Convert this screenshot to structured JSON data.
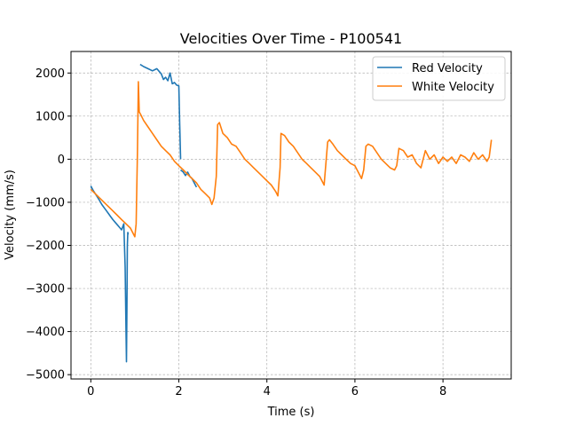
{
  "chart_data": {
    "type": "line",
    "title": "Velocities Over Time - P100541",
    "xlabel": "Time (s)",
    "ylabel": "Velocity (mm/s)",
    "xlim": [
      -0.45,
      9.55
    ],
    "ylim": [
      -5100,
      2500
    ],
    "xticks": [
      0,
      2,
      4,
      6,
      8
    ],
    "yticks": [
      -5000,
      -4000,
      -3000,
      -2000,
      -1000,
      0,
      1000,
      2000
    ],
    "grid": true,
    "legend_position": "top-right",
    "series": [
      {
        "name": "Red Velocity",
        "color": "#1f77b4",
        "segments": [
          {
            "x": [
              0.0,
              0.05,
              0.1,
              0.15,
              0.2,
              0.25,
              0.3,
              0.35,
              0.4,
              0.45,
              0.5,
              0.55,
              0.6,
              0.65,
              0.7,
              0.75,
              0.78,
              0.8,
              0.81,
              0.82,
              0.83,
              0.84,
              0.85
            ],
            "y": [
              -620,
              -720,
              -800,
              -880,
              -960,
              -1050,
              -1120,
              -1190,
              -1260,
              -1330,
              -1400,
              -1460,
              -1520,
              -1580,
              -1640,
              -1500,
              -2500,
              -4000,
              -4700,
              -3500,
              -2000,
              -1700,
              -1750
            ]
          },
          {
            "x": [
              1.12,
              1.2,
              1.3,
              1.4,
              1.5,
              1.6,
              1.65,
              1.7,
              1.75,
              1.8,
              1.85,
              1.9,
              1.95,
              2.0,
              2.02,
              2.04
            ],
            "y": [
              2200,
              2150,
              2100,
              2050,
              2100,
              1980,
              1850,
              1900,
              1820,
              2000,
              1750,
              1780,
              1720,
              1700,
              800,
              0
            ]
          },
          {
            "x": [
              2.04,
              2.1,
              2.15,
              2.2,
              2.25,
              2.3,
              2.35,
              2.4
            ],
            "y": [
              -250,
              -300,
              -380,
              -300,
              -400,
              -450,
              -550,
              -650
            ]
          }
        ]
      },
      {
        "name": "White Velocity",
        "color": "#ff7f0e",
        "segments": [
          {
            "x": [
              0.0,
              0.1,
              0.2,
              0.3,
              0.4,
              0.5,
              0.6,
              0.7,
              0.8,
              0.9,
              0.95,
              1.0,
              1.03,
              1.06,
              1.08,
              1.1,
              1.15,
              1.2,
              1.3,
              1.4,
              1.5,
              1.6,
              1.7,
              1.8,
              1.9,
              2.0,
              2.1,
              2.2,
              2.3,
              2.4,
              2.5,
              2.6,
              2.7,
              2.75,
              2.8,
              2.85,
              2.88,
              2.92,
              3.0,
              3.1,
              3.2,
              3.3,
              3.4,
              3.5,
              3.6,
              3.7,
              3.8,
              3.9,
              4.0,
              4.1,
              4.2,
              4.25,
              4.3,
              4.32,
              4.4,
              4.5,
              4.6,
              4.7,
              4.8,
              4.9,
              5.0,
              5.1,
              5.2,
              5.3,
              5.38,
              5.42,
              5.5,
              5.6,
              5.7,
              5.8,
              5.9,
              6.0,
              6.1,
              6.15,
              6.2,
              6.25,
              6.3,
              6.4,
              6.5,
              6.6,
              6.7,
              6.8,
              6.9,
              6.95,
              7.0,
              7.1,
              7.2,
              7.3,
              7.4,
              7.5,
              7.6,
              7.7,
              7.8,
              7.9,
              8.0,
              8.1,
              8.2,
              8.3,
              8.4,
              8.5,
              8.6,
              8.7,
              8.8,
              8.9,
              9.0,
              9.05,
              9.1
            ],
            "y": [
              -700,
              -800,
              -900,
              -1000,
              -1100,
              -1200,
              -1300,
              -1400,
              -1500,
              -1600,
              -1700,
              -1800,
              -1500,
              200,
              1800,
              1100,
              1000,
              900,
              750,
              600,
              450,
              300,
              200,
              100,
              -50,
              -150,
              -250,
              -350,
              -450,
              -550,
              -700,
              -800,
              -900,
              -1050,
              -900,
              -400,
              800,
              850,
              600,
              500,
              350,
              300,
              150,
              0,
              -100,
              -200,
              -300,
              -400,
              -500,
              -600,
              -750,
              -850,
              -200,
              600,
              550,
              400,
              300,
              150,
              0,
              -100,
              -200,
              -300,
              -400,
              -600,
              400,
              450,
              350,
              200,
              100,
              0,
              -100,
              -150,
              -350,
              -450,
              -250,
              300,
              350,
              300,
              150,
              0,
              -100,
              -200,
              -250,
              -150,
              250,
              200,
              50,
              100,
              -100,
              -200,
              200,
              0,
              100,
              -100,
              50,
              -50,
              50,
              -100,
              100,
              50,
              -50,
              150,
              0,
              100,
              -50,
              50,
              450
            ]
          }
        ]
      }
    ]
  }
}
